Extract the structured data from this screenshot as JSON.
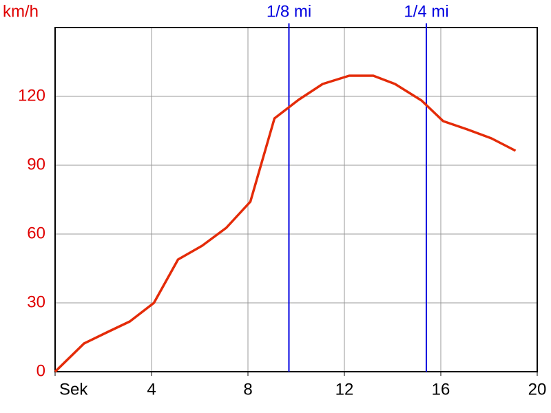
{
  "chart_data": {
    "type": "line",
    "y_label": "km/h",
    "x": [
      0,
      1.2,
      2.2,
      3.1,
      4.1,
      5.1,
      6.1,
      7.1,
      8.1,
      9.1,
      10.1,
      11.1,
      12.2,
      13.2,
      14.1,
      15.2,
      16.1,
      17.1,
      18.1,
      19.1
    ],
    "series": [
      {
        "color": "#e42b08",
        "values": [
          0,
          12.3,
          17.4,
          21.9,
          30,
          48.9,
          54.9,
          62.7,
          74.1,
          110.4,
          118.5,
          125.4,
          129,
          129,
          125.4,
          118.2,
          109.2,
          105.6,
          101.7,
          96.3
        ]
      }
    ],
    "xlim": [
      0,
      20
    ],
    "xticks": [
      {
        "value": 0,
        "label": "Sek"
      },
      4,
      8,
      12,
      16,
      20
    ],
    "ylim": [
      0,
      150
    ],
    "yticks": [
      0,
      30,
      60,
      90,
      120
    ],
    "grid": true,
    "markers": [
      {
        "label": "1/8 mi",
        "x": 9.7,
        "color": "#0000e0"
      },
      {
        "label": "1/4 mi",
        "x": 15.4,
        "color": "#0000e0"
      }
    ]
  }
}
